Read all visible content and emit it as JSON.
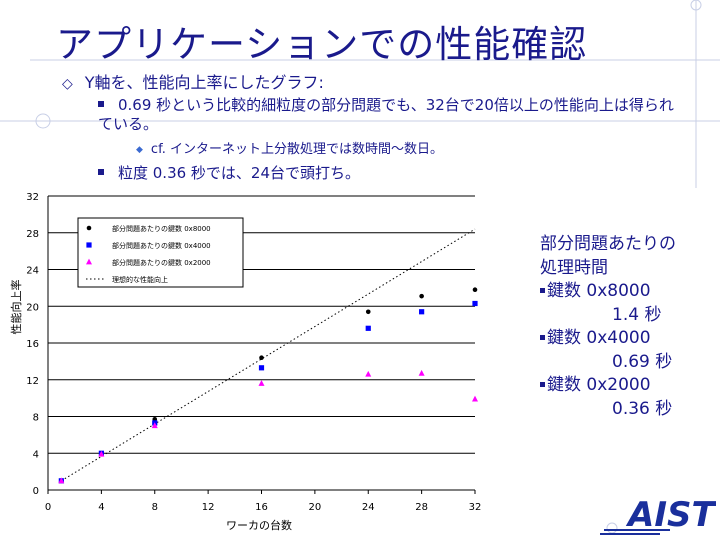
{
  "slide": {
    "title": "アプリケーションでの性能確認",
    "bullet1": "Y軸を、性能向上率にしたグラフ:",
    "bullet2": "0.69 秒という比較的細粒度の部分問題でも、32台で20倍以上の性能向上は得られている。",
    "bullet3": "cf. インターネット上分散処理では数時間〜数日。",
    "bullet4": "粒度 0.36 秒では、24台で頭打ち。"
  },
  "side_panel": {
    "heading1": "部分問題あたりの",
    "heading2": "処理時間",
    "item1_label": "鍵数 0x8000",
    "item1_time": "1.4 秒",
    "item2_label": "鍵数 0x4000",
    "item2_time": "0.69 秒",
    "item3_label": "鍵数 0x2000",
    "item3_time": "0.36 秒"
  },
  "logo_text": "AIST",
  "colors": {
    "title": "#1a1a8c",
    "accent": "#3b6ad1",
    "series_black": "#000000",
    "series_blue": "#0000ff",
    "series_magenta": "#ff00ff"
  },
  "chart_data": {
    "type": "scatter",
    "xlabel": "ワーカの台数",
    "ylabel": "性能向上率",
    "xlim": [
      0,
      32
    ],
    "ylim": [
      0,
      32
    ],
    "x_ticks": [
      "0",
      "4",
      "8",
      "12",
      "16",
      "20",
      "24",
      "28",
      "32"
    ],
    "y_ticks": [
      "0",
      "4",
      "8",
      "12",
      "16",
      "20",
      "24",
      "28",
      "32"
    ],
    "grid": "horizontal",
    "legend_position": "top-left",
    "series": [
      {
        "name": "部分問題あたりの鍵数 0x8000",
        "marker": "circle",
        "color": "#000000",
        "x": [
          1,
          4,
          8,
          16,
          24,
          28,
          32
        ],
        "y": [
          1.0,
          4.0,
          7.7,
          14.4,
          19.4,
          21.1,
          21.8
        ]
      },
      {
        "name": "部分問題あたりの鍵数 0x4000",
        "marker": "square",
        "color": "#0000ff",
        "x": [
          1,
          4,
          8,
          16,
          24,
          28,
          32
        ],
        "y": [
          1.0,
          4.0,
          7.3,
          13.3,
          17.6,
          19.4,
          20.3
        ]
      },
      {
        "name": "部分問題あたりの鍵数 0x2000",
        "marker": "triangle",
        "color": "#ff00ff",
        "x": [
          1,
          4,
          8,
          16,
          24,
          28,
          32
        ],
        "y": [
          1.0,
          3.9,
          7.0,
          11.6,
          12.6,
          12.7,
          9.9
        ]
      },
      {
        "name": "理想的な性能向上",
        "marker": "dotted-line",
        "color": "#000000",
        "x": [
          1,
          32
        ],
        "y": [
          1,
          28.4
        ]
      }
    ]
  }
}
